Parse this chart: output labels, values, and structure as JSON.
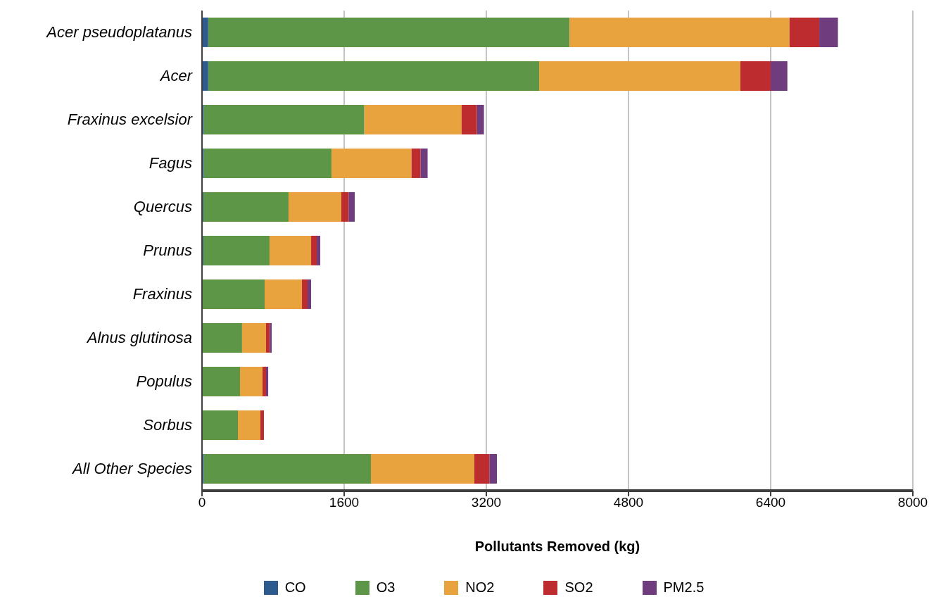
{
  "chart_data": {
    "type": "bar",
    "orientation": "horizontal",
    "stacked": true,
    "xlabel": "Pollutants Removed (kg)",
    "categories": [
      "Acer pseudoplatanus",
      "Acer",
      "Fraxinus excelsior",
      "Fagus",
      "Quercus",
      "Prunus",
      "Fraxinus",
      "Alnus glutinosa",
      "Populus",
      "Sorbus",
      "All Other Species"
    ],
    "series": [
      {
        "name": "CO",
        "color": "#2d5b8e",
        "values": [
          70,
          70,
          20,
          20,
          15,
          15,
          5,
          5,
          5,
          5,
          20
        ]
      },
      {
        "name": "O3",
        "color": "#5e9648",
        "values": [
          4066,
          3724,
          1807,
          1438,
          959,
          745,
          700,
          446,
          423,
          399,
          1881
        ]
      },
      {
        "name": "NO2",
        "color": "#e8a23e",
        "values": [
          2476,
          2264,
          1095,
          900,
          594,
          468,
          420,
          270,
          253,
          253,
          1164
        ]
      },
      {
        "name": "SO2",
        "color": "#bd2d30",
        "values": [
          335,
          342,
          172,
          102,
          82,
          63,
          63,
          42,
          40,
          40,
          169
        ]
      },
      {
        "name": "PM2.5",
        "color": "#6f3c7d",
        "values": [
          210,
          188,
          79,
          79,
          69,
          40,
          40,
          21,
          24,
          0,
          85
        ]
      }
    ],
    "xlim": [
      0,
      8000
    ],
    "xticks": [
      0,
      1600,
      3200,
      4800,
      6400,
      8000
    ],
    "grid": "x",
    "legend": "bottom"
  }
}
